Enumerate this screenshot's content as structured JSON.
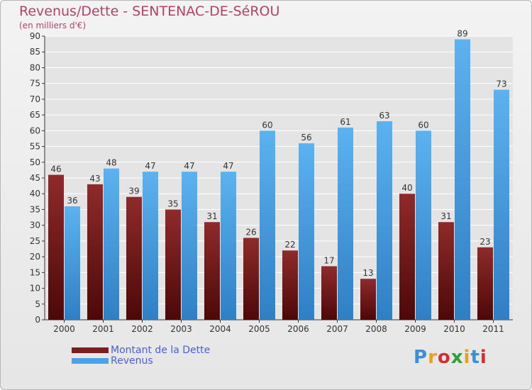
{
  "title": "Revenus/Dette - SENTENAC-DE-SéROU",
  "subtitle": "(en milliers d'€)",
  "logo": {
    "text": "Proxiti",
    "letters": [
      {
        "ch": "P",
        "color": "#3a8fd6"
      },
      {
        "ch": "r",
        "color": "#e8a020"
      },
      {
        "ch": "o",
        "color": "#d23030"
      },
      {
        "ch": "x",
        "color": "#2e9e3e"
      },
      {
        "ch": "i",
        "color": "#e8a020"
      },
      {
        "ch": "t",
        "color": "#3a8fd6"
      },
      {
        "ch": "i",
        "color": "#d23030"
      }
    ]
  },
  "colors": {
    "dette": "#7a1f1f",
    "revenus": "#4aa3e8",
    "axis": "#333333",
    "grid": "#ffffff",
    "title": "#b0426a",
    "legend_text": "#4a5fd8"
  },
  "chart_data": {
    "type": "bar",
    "title": "Revenus/Dette - SENTENAC-DE-SéROU",
    "subtitle": "(en milliers d'€)",
    "categories": [
      "2000",
      "2001",
      "2002",
      "2003",
      "2004",
      "2005",
      "2006",
      "2007",
      "2008",
      "2009",
      "2010",
      "2011"
    ],
    "series": [
      {
        "name": "Montant de la Dette",
        "values": [
          46,
          43,
          39,
          35,
          31,
          26,
          22,
          17,
          13,
          40,
          31,
          23
        ]
      },
      {
        "name": "Revenus",
        "values": [
          36,
          48,
          47,
          47,
          47,
          60,
          56,
          61,
          63,
          60,
          89,
          73
        ]
      }
    ],
    "ylim": [
      0,
      90
    ],
    "ytick_step": 5,
    "grid": true,
    "legend_position": "bottom-left",
    "data_labels": true
  }
}
